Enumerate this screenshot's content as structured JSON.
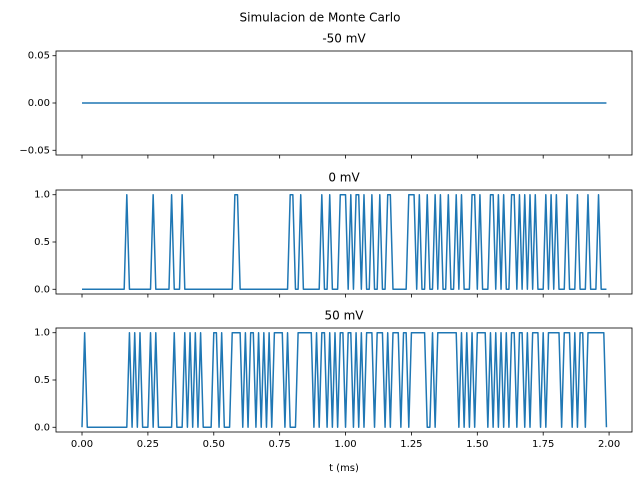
{
  "title": "Simulacion de Monte Carlo",
  "chart_data": [
    {
      "type": "line",
      "title": "-50 mV",
      "x": [
        0,
        1.99
      ],
      "series": [
        {
          "color": "#1f77b4",
          "values": [
            0,
            0
          ]
        }
      ],
      "xlim": [
        -0.0987,
        2.087
      ],
      "ylim": [
        -0.055,
        0.055
      ],
      "xticks": [
        0,
        0.25,
        0.5,
        0.75,
        1,
        1.25,
        1.5,
        1.75,
        2
      ],
      "yticks": [
        {
          "value": -0.05,
          "label": "−0.05"
        },
        {
          "value": 0,
          "label": "0.00"
        },
        {
          "value": 0.05,
          "label": "0.05"
        }
      ]
    },
    {
      "type": "line",
      "title": "0 mV",
      "x": [
        0,
        0.01,
        0.02,
        0.03,
        0.04,
        0.05,
        0.06,
        0.07,
        0.08,
        0.09,
        0.1,
        0.11,
        0.12,
        0.13,
        0.14,
        0.15,
        0.16,
        0.17,
        0.18,
        0.19,
        0.2,
        0.21,
        0.22,
        0.23,
        0.24,
        0.25,
        0.26,
        0.27,
        0.28,
        0.29,
        0.3,
        0.31,
        0.32,
        0.33,
        0.34,
        0.35,
        0.36,
        0.37,
        0.38,
        0.39,
        0.4,
        0.41,
        0.42,
        0.43,
        0.44,
        0.45,
        0.46,
        0.47,
        0.48,
        0.49,
        0.5,
        0.51,
        0.52,
        0.53,
        0.54,
        0.55,
        0.56,
        0.57,
        0.58,
        0.59,
        0.6,
        0.61,
        0.62,
        0.63,
        0.64,
        0.65,
        0.66,
        0.67,
        0.68,
        0.69,
        0.7,
        0.71,
        0.72,
        0.73,
        0.74,
        0.75,
        0.76,
        0.77,
        0.78,
        0.79,
        0.8,
        0.81,
        0.82,
        0.83,
        0.84,
        0.85,
        0.86,
        0.87,
        0.88,
        0.89,
        0.9,
        0.91,
        0.92,
        0.93,
        0.94,
        0.95,
        0.96,
        0.97,
        0.98,
        0.99,
        1,
        1.01,
        1.02,
        1.03,
        1.04,
        1.05,
        1.06,
        1.07,
        1.08,
        1.09,
        1.1,
        1.11,
        1.12,
        1.13,
        1.14,
        1.15,
        1.16,
        1.17,
        1.18,
        1.19,
        1.2,
        1.21,
        1.22,
        1.23,
        1.24,
        1.25,
        1.26,
        1.27,
        1.28,
        1.29,
        1.3,
        1.31,
        1.32,
        1.33,
        1.34,
        1.35,
        1.36,
        1.37,
        1.38,
        1.39,
        1.4,
        1.41,
        1.42,
        1.43,
        1.44,
        1.45,
        1.46,
        1.47,
        1.48,
        1.49,
        1.5,
        1.51,
        1.52,
        1.53,
        1.54,
        1.55,
        1.56,
        1.57,
        1.58,
        1.59,
        1.6,
        1.61,
        1.62,
        1.63,
        1.64,
        1.65,
        1.66,
        1.67,
        1.68,
        1.69,
        1.7,
        1.71,
        1.72,
        1.73,
        1.74,
        1.75,
        1.76,
        1.77,
        1.78,
        1.79,
        1.8,
        1.81,
        1.82,
        1.83,
        1.84,
        1.85,
        1.86,
        1.87,
        1.88,
        1.89,
        1.9,
        1.91,
        1.92,
        1.93,
        1.94,
        1.95,
        1.96,
        1.97,
        1.98,
        1.99
      ],
      "series": [
        {
          "color": "#1f77b4",
          "values": [
            0,
            0,
            0,
            0,
            0,
            0,
            0,
            0,
            0,
            0,
            0,
            0,
            0,
            0,
            0,
            0,
            0,
            1,
            0,
            0,
            0,
            0,
            0,
            0,
            0,
            0,
            0,
            1,
            0,
            0,
            0,
            0,
            0,
            0,
            1,
            0,
            0,
            0,
            1,
            0,
            0,
            0,
            0,
            0,
            0,
            0,
            0,
            0,
            0,
            0,
            0,
            0,
            0,
            0,
            0,
            0,
            0,
            0,
            1,
            1,
            0,
            0,
            0,
            0,
            0,
            0,
            0,
            0,
            0,
            0,
            0,
            0,
            0,
            0,
            0,
            0,
            0,
            0,
            0,
            1,
            1,
            0,
            0,
            1,
            0,
            0,
            0,
            0,
            0,
            0,
            0,
            1,
            0,
            0,
            1,
            0,
            0,
            0,
            1,
            1,
            1,
            0,
            1,
            0,
            1,
            1,
            0,
            1,
            0,
            0,
            1,
            0,
            0,
            1,
            0,
            0,
            1,
            1,
            0,
            0,
            0,
            0,
            0,
            0,
            1,
            1,
            1,
            0,
            1,
            0,
            0,
            1,
            0,
            0,
            1,
            0,
            1,
            0,
            0,
            1,
            0,
            0,
            1,
            0,
            1,
            0,
            0,
            0,
            1,
            1,
            0,
            1,
            0,
            0,
            0,
            1,
            1,
            0,
            1,
            0,
            1,
            0,
            0,
            1,
            1,
            0,
            1,
            0,
            1,
            0,
            1,
            0,
            1,
            0,
            0,
            0,
            1,
            0,
            1,
            0,
            1,
            0,
            0,
            0,
            1,
            0,
            0,
            0,
            1,
            0,
            0,
            0,
            1,
            0,
            0,
            0,
            1,
            0,
            0,
            0
          ]
        }
      ],
      "xlim": [
        -0.0987,
        2.087
      ],
      "ylim": [
        -0.05,
        1.05
      ],
      "xticks": [
        0,
        0.25,
        0.5,
        0.75,
        1,
        1.25,
        1.5,
        1.75,
        2
      ],
      "yticks": [
        {
          "value": 0,
          "label": "0.0"
        },
        0.5,
        {
          "value": 1,
          "label": "1.0"
        }
      ]
    },
    {
      "type": "line",
      "title": "50 mV",
      "xlabel": "t (ms)",
      "x": [
        0,
        0.01,
        0.02,
        0.03,
        0.04,
        0.05,
        0.06,
        0.07,
        0.08,
        0.09,
        0.1,
        0.11,
        0.12,
        0.13,
        0.14,
        0.15,
        0.16,
        0.17,
        0.18,
        0.19,
        0.2,
        0.21,
        0.22,
        0.23,
        0.24,
        0.25,
        0.26,
        0.27,
        0.28,
        0.29,
        0.3,
        0.31,
        0.32,
        0.33,
        0.34,
        0.35,
        0.36,
        0.37,
        0.38,
        0.39,
        0.4,
        0.41,
        0.42,
        0.43,
        0.44,
        0.45,
        0.46,
        0.47,
        0.48,
        0.49,
        0.5,
        0.51,
        0.52,
        0.53,
        0.54,
        0.55,
        0.56,
        0.57,
        0.58,
        0.59,
        0.6,
        0.61,
        0.62,
        0.63,
        0.64,
        0.65,
        0.66,
        0.67,
        0.68,
        0.69,
        0.7,
        0.71,
        0.72,
        0.73,
        0.74,
        0.75,
        0.76,
        0.77,
        0.78,
        0.79,
        0.8,
        0.81,
        0.82,
        0.83,
        0.84,
        0.85,
        0.86,
        0.87,
        0.88,
        0.89,
        0.9,
        0.91,
        0.92,
        0.93,
        0.94,
        0.95,
        0.96,
        0.97,
        0.98,
        0.99,
        1,
        1.01,
        1.02,
        1.03,
        1.04,
        1.05,
        1.06,
        1.07,
        1.08,
        1.09,
        1.1,
        1.11,
        1.12,
        1.13,
        1.14,
        1.15,
        1.16,
        1.17,
        1.18,
        1.19,
        1.2,
        1.21,
        1.22,
        1.23,
        1.24,
        1.25,
        1.26,
        1.27,
        1.28,
        1.29,
        1.3,
        1.31,
        1.32,
        1.33,
        1.34,
        1.35,
        1.36,
        1.37,
        1.38,
        1.39,
        1.4,
        1.41,
        1.42,
        1.43,
        1.44,
        1.45,
        1.46,
        1.47,
        1.48,
        1.49,
        1.5,
        1.51,
        1.52,
        1.53,
        1.54,
        1.55,
        1.56,
        1.57,
        1.58,
        1.59,
        1.6,
        1.61,
        1.62,
        1.63,
        1.64,
        1.65,
        1.66,
        1.67,
        1.68,
        1.69,
        1.7,
        1.71,
        1.72,
        1.73,
        1.74,
        1.75,
        1.76,
        1.77,
        1.78,
        1.79,
        1.8,
        1.81,
        1.82,
        1.83,
        1.84,
        1.85,
        1.86,
        1.87,
        1.88,
        1.89,
        1.9,
        1.91,
        1.92,
        1.93,
        1.94,
        1.95,
        1.96,
        1.97,
        1.98,
        1.99
      ],
      "series": [
        {
          "color": "#1f77b4",
          "values": [
            0,
            1,
            0,
            0,
            0,
            0,
            0,
            0,
            0,
            0,
            0,
            0,
            0,
            0,
            0,
            0,
            0,
            0,
            1,
            0,
            1,
            0,
            1,
            0,
            0,
            0,
            1,
            0,
            1,
            0,
            0,
            0,
            0,
            0,
            0,
            1,
            0,
            0,
            0,
            1,
            0,
            1,
            0,
            1,
            0,
            1,
            0,
            0,
            0,
            0,
            1,
            1,
            0,
            1,
            0,
            0,
            0,
            1,
            1,
            1,
            1,
            0,
            1,
            0,
            1,
            1,
            0,
            1,
            0,
            1,
            0,
            1,
            0,
            1,
            1,
            1,
            1,
            0,
            1,
            0,
            0,
            0,
            1,
            1,
            1,
            1,
            1,
            1,
            0,
            1,
            0,
            1,
            1,
            0,
            1,
            0,
            1,
            0,
            1,
            1,
            0,
            1,
            1,
            0,
            1,
            0,
            1,
            0,
            1,
            1,
            1,
            0,
            1,
            1,
            1,
            0,
            1,
            0,
            1,
            1,
            1,
            0,
            1,
            1,
            0,
            1,
            1,
            1,
            1,
            1,
            1,
            0,
            0,
            1,
            0,
            1,
            1,
            1,
            1,
            1,
            1,
            1,
            1,
            0,
            1,
            0,
            1,
            0,
            1,
            0,
            1,
            1,
            1,
            1,
            0,
            1,
            0,
            1,
            0,
            1,
            0,
            1,
            0,
            1,
            1,
            0,
            1,
            1,
            0,
            1,
            0,
            1,
            1,
            1,
            0,
            1,
            0,
            1,
            1,
            1,
            1,
            1,
            0,
            1,
            1,
            1,
            0,
            1,
            0,
            1,
            1,
            0,
            1,
            1,
            1,
            1,
            1,
            1,
            1,
            0
          ]
        }
      ],
      "xlim": [
        -0.0987,
        2.087
      ],
      "ylim": [
        -0.05,
        1.05
      ],
      "xticks": [
        {
          "value": 0,
          "label": "0.00"
        },
        0.25,
        {
          "value": 0.5,
          "label": "0.50"
        },
        0.75,
        {
          "value": 1,
          "label": "1.00"
        },
        1.25,
        {
          "value": 1.5,
          "label": "1.50"
        },
        1.75,
        {
          "value": 2,
          "label": "2.00"
        }
      ],
      "yticks": [
        {
          "value": 0,
          "label": "0.0"
        },
        0.5,
        {
          "value": 1,
          "label": "1.0"
        }
      ]
    }
  ]
}
